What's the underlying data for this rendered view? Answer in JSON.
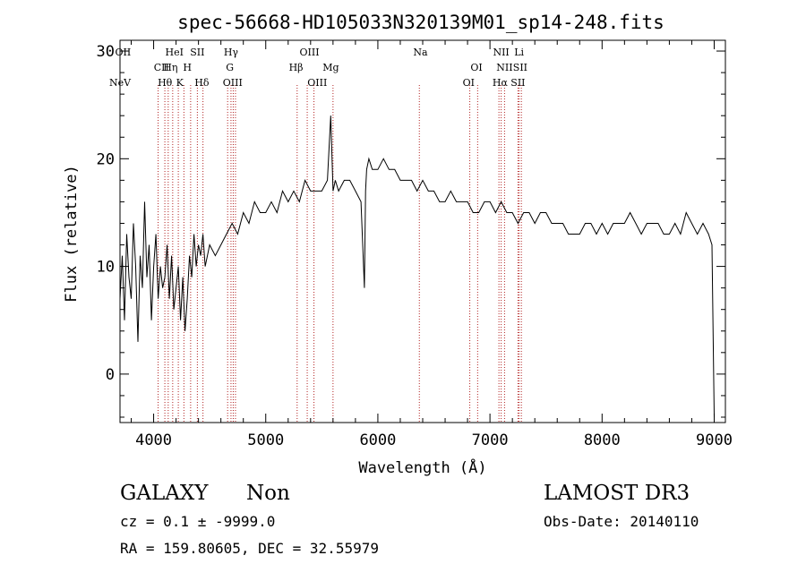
{
  "chart_data": {
    "type": "line",
    "title": "spec-56668-HD105033N320139M01_sp14-248.fits",
    "xlabel": "Wavelength (Å)",
    "ylabel": "Flux (relative)",
    "xlim": [
      3700,
      9100
    ],
    "ylim": [
      -4.5,
      31
    ],
    "xticks": [
      4000,
      5000,
      6000,
      7000,
      8000,
      9000
    ],
    "yticks": [
      0,
      10,
      20,
      30
    ],
    "series": [
      {
        "name": "flux",
        "x": [
          3700,
          3720,
          3740,
          3760,
          3780,
          3800,
          3820,
          3840,
          3860,
          3880,
          3900,
          3920,
          3940,
          3960,
          3980,
          4000,
          4020,
          4040,
          4060,
          4080,
          4100,
          4120,
          4140,
          4160,
          4180,
          4200,
          4220,
          4240,
          4260,
          4280,
          4300,
          4320,
          4340,
          4360,
          4380,
          4400,
          4420,
          4440,
          4460,
          4480,
          4500,
          4550,
          4600,
          4650,
          4700,
          4750,
          4800,
          4850,
          4900,
          4950,
          5000,
          5050,
          5100,
          5150,
          5200,
          5250,
          5300,
          5350,
          5400,
          5450,
          5500,
          5550,
          5580,
          5600,
          5620,
          5650,
          5700,
          5750,
          5800,
          5850,
          5880,
          5890,
          5900,
          5920,
          5950,
          6000,
          6050,
          6100,
          6150,
          6200,
          6250,
          6300,
          6350,
          6400,
          6450,
          6500,
          6550,
          6600,
          6650,
          6700,
          6750,
          6800,
          6850,
          6900,
          6950,
          7000,
          7050,
          7100,
          7150,
          7200,
          7250,
          7300,
          7350,
          7400,
          7450,
          7500,
          7550,
          7600,
          7650,
          7700,
          7750,
          7800,
          7850,
          7900,
          7950,
          8000,
          8050,
          8100,
          8150,
          8200,
          8250,
          8300,
          8350,
          8400,
          8450,
          8500,
          8550,
          8600,
          8650,
          8700,
          8750,
          8800,
          8850,
          8900,
          8950,
          8980,
          9000
        ],
        "y": [
          7,
          11,
          5,
          13,
          9,
          7,
          14,
          10,
          3,
          11,
          8,
          16,
          9,
          12,
          5,
          10,
          13,
          7,
          10,
          8,
          9,
          12,
          7,
          11,
          6,
          8,
          10,
          5,
          9,
          4,
          7,
          11,
          9,
          13,
          10,
          12,
          11,
          13,
          10,
          11,
          12,
          11,
          12,
          13,
          14,
          13,
          15,
          14,
          16,
          15,
          15,
          16,
          15,
          17,
          16,
          17,
          16,
          18,
          17,
          17,
          17,
          18,
          24,
          17,
          18,
          17,
          18,
          18,
          17,
          16,
          8,
          17,
          19,
          20,
          19,
          19,
          20,
          19,
          19,
          18,
          18,
          18,
          17,
          18,
          17,
          17,
          16,
          16,
          17,
          16,
          16,
          16,
          15,
          15,
          16,
          16,
          15,
          16,
          15,
          15,
          14,
          15,
          15,
          14,
          15,
          15,
          14,
          14,
          14,
          13,
          13,
          13,
          14,
          14,
          13,
          14,
          13,
          14,
          14,
          14,
          15,
          14,
          13,
          14,
          14,
          14,
          13,
          13,
          14,
          13,
          15,
          14,
          13,
          14,
          13,
          12,
          -4
        ]
      }
    ],
    "annotations": {
      "line_markers": [
        {
          "label": "NeV",
          "wavelength": 3426,
          "row": 3
        },
        {
          "label": "OII",
          "wavelength": 3727,
          "row": 1
        },
        {
          "label": "CII",
          "wavelength": 4070,
          "row": 2
        },
        {
          "label": "Hθ",
          "wavelength": 4101,
          "row": 3
        },
        {
          "label": "Hη",
          "wavelength": 4150,
          "row": 2
        },
        {
          "label": "HeI",
          "wavelength": 4185,
          "row": 1
        },
        {
          "label": "K",
          "wavelength": 4233,
          "row": 3
        },
        {
          "label": "H",
          "wavelength": 4300,
          "row": 2
        },
        {
          "label": "SII",
          "wavelength": 4390,
          "row": 1
        },
        {
          "label": "Hδ",
          "wavelength": 4430,
          "row": 3
        },
        {
          "label": "Hγ",
          "wavelength": 4690,
          "row": 1
        },
        {
          "label": "G",
          "wavelength": 4680,
          "row": 2
        },
        {
          "label": "OIII",
          "wavelength": 4705,
          "row": 3
        },
        {
          "label": "OIII",
          "wavelength": 5390,
          "row": 1
        },
        {
          "label": "Hβ",
          "wavelength": 5270,
          "row": 2
        },
        {
          "label": "OIII",
          "wavelength": 5460,
          "row": 3
        },
        {
          "label": "Mg",
          "wavelength": 5580,
          "row": 2
        },
        {
          "label": "Na",
          "wavelength": 6380,
          "row": 1
        },
        {
          "label": "OI",
          "wavelength": 6880,
          "row": 2
        },
        {
          "label": "OI",
          "wavelength": 6810,
          "row": 3
        },
        {
          "label": "NII",
          "wavelength": 7100,
          "row": 1
        },
        {
          "label": "NII",
          "wavelength": 7130,
          "row": 2
        },
        {
          "label": "Hα",
          "wavelength": 7090,
          "row": 3
        },
        {
          "label": "Li",
          "wavelength": 7260,
          "row": 1
        },
        {
          "label": "SII",
          "wavelength": 7270,
          "row": 2
        },
        {
          "label": "SII",
          "wavelength": 7250,
          "row": 3
        }
      ],
      "marker_line_wavelengths": [
        4040,
        4100,
        4130,
        4170,
        4220,
        4270,
        4330,
        4390,
        4440,
        4660,
        4690,
        4710,
        4730,
        5280,
        5370,
        5430,
        5600,
        6370,
        6820,
        6890,
        7080,
        7100,
        7130,
        7250,
        7260,
        7280
      ]
    }
  },
  "info": {
    "object_class": "GALAXY",
    "subclass": "Non",
    "survey": "LAMOST DR3",
    "redshift_line": "cz = 0.1 ± -9999.0",
    "obs_date": "Obs-Date: 20140110",
    "coords": "RA = 159.80605, DEC =  32.55979"
  },
  "colors": {
    "spectrum": "#000000",
    "marker_lines": "#b22222",
    "axes": "#000000",
    "background": "#ffffff"
  }
}
